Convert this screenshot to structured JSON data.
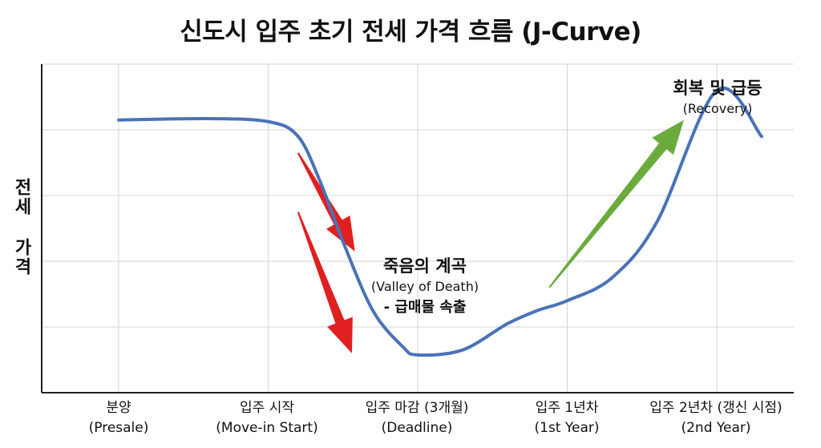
{
  "chart_data": {
    "type": "line",
    "title": "신도시 입주 초기 전세 가격 흐름 (J-Curve)",
    "ylabel": "전세 가격",
    "xlabel": "",
    "categories": [
      {
        "label": "분양",
        "sublabel": "(Presale)"
      },
      {
        "label": "입주 시작",
        "sublabel": "(Move-in Start)"
      },
      {
        "label": "입주 마감 (3개월)",
        "sublabel": "(Deadline)"
      },
      {
        "label": "입주 1년차",
        "sublabel": "(1st Year)"
      },
      {
        "label": "입주 2년차 (갱신 시점)",
        "sublabel": "(2nd Year)"
      }
    ],
    "ylim": [
      0,
      100
    ],
    "grid": true,
    "series": [
      {
        "color": "#4a72b8",
        "points": [
          [
            0,
            83
          ],
          [
            0.6,
            83.4
          ],
          [
            1.0,
            82.5
          ],
          [
            1.2,
            78
          ],
          [
            1.35,
            64
          ],
          [
            1.5,
            46
          ],
          [
            1.7,
            25
          ],
          [
            1.9,
            14
          ],
          [
            2.0,
            11.5
          ],
          [
            2.3,
            13
          ],
          [
            2.6,
            21
          ],
          [
            2.8,
            25
          ],
          [
            3.0,
            28
          ],
          [
            3.3,
            35
          ],
          [
            3.6,
            52
          ],
          [
            4.0,
            92
          ],
          [
            4.3,
            78
          ]
        ]
      }
    ],
    "annotations": [
      {
        "main": "죽음의 계곡",
        "sub": "(Valley of Death)",
        "sub2": "- 급매물 속출"
      },
      {
        "main": "회복 및 급등",
        "sub": "(Recovery)"
      }
    ],
    "arrows": [
      {
        "name": "decline-arrow-1",
        "color": "#e02020",
        "from": [
          1.2,
          73
        ],
        "to": [
          1.58,
          43
        ]
      },
      {
        "name": "decline-arrow-2",
        "color": "#e02020",
        "from": [
          1.2,
          55
        ],
        "to": [
          1.56,
          12
        ]
      },
      {
        "name": "recovery-arrow",
        "color": "#6bab3e",
        "from": [
          2.88,
          32
        ],
        "to": [
          3.78,
          83
        ]
      }
    ]
  }
}
